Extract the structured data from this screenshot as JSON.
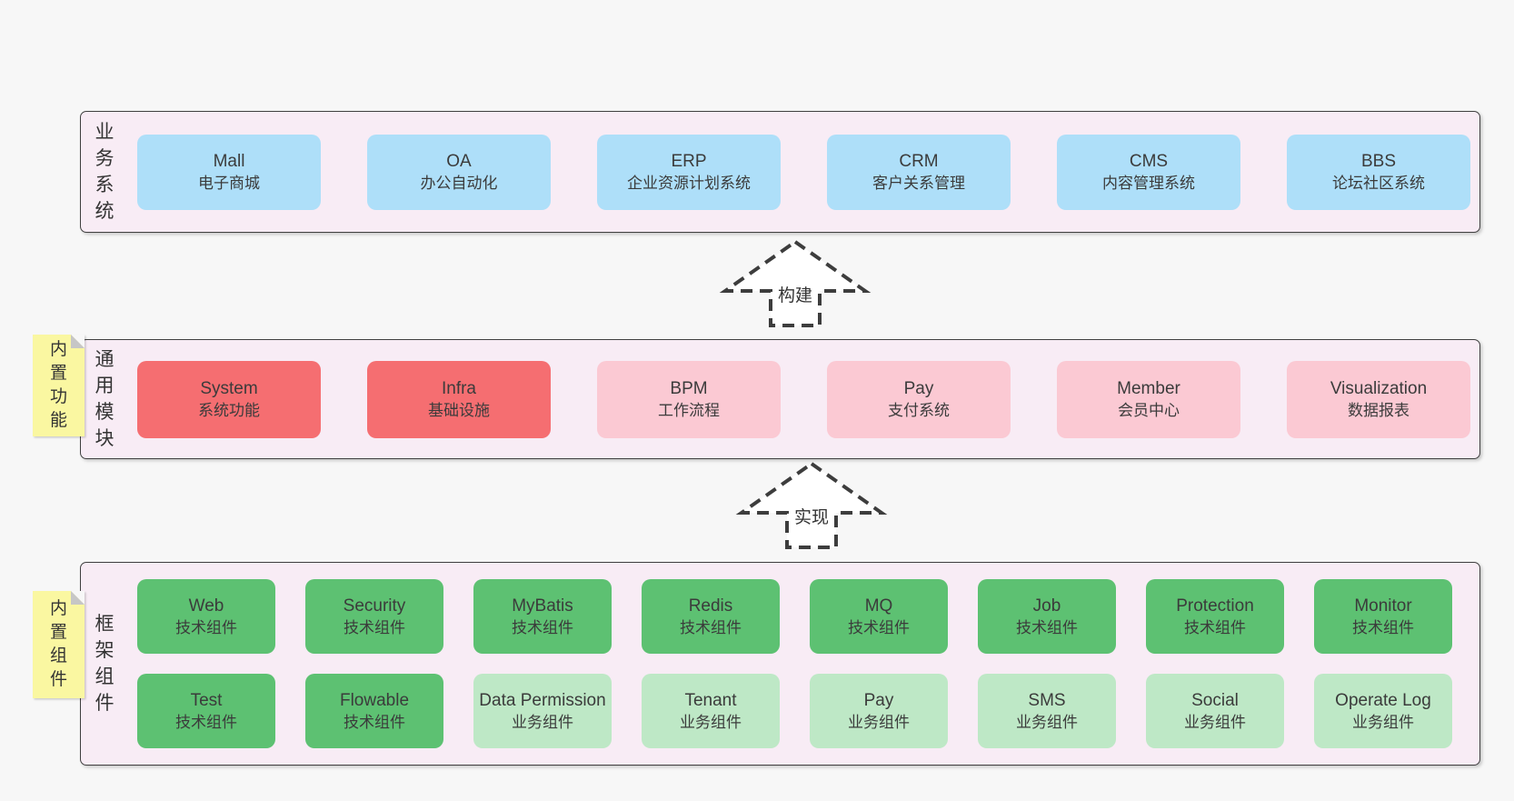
{
  "diagram": {
    "colors": {
      "blue": "#aedff9",
      "red": "#f56e71",
      "pink": "#fbc9d3",
      "green": "#5dc172",
      "lightgreen": "#bee8c6",
      "panel_bg": "#f8ecf5",
      "panel_border": "#404040",
      "note_bg": "#faf7a1",
      "note_fold": "#c6c6c6",
      "page_bg": "#f7f7f7",
      "arrow_stroke": "#3d3d3d",
      "text": "#3b3b3b"
    },
    "arrows": [
      {
        "label": "构建"
      },
      {
        "label": "实现"
      }
    ],
    "sections": [
      {
        "id": "business-systems",
        "side_label": "业务系统",
        "note": "",
        "rows": [
          [
            {
              "name": "Mall",
              "subtitle": "电子商城",
              "variant": "blue"
            },
            {
              "name": "OA",
              "subtitle": "办公自动化",
              "variant": "blue"
            },
            {
              "name": "ERP",
              "subtitle": "企业资源计划系统",
              "variant": "blue"
            },
            {
              "name": "CRM",
              "subtitle": "客户关系管理",
              "variant": "blue"
            },
            {
              "name": "CMS",
              "subtitle": "内容管理系统",
              "variant": "blue"
            },
            {
              "name": "BBS",
              "subtitle": "论坛社区系统",
              "variant": "blue"
            }
          ]
        ]
      },
      {
        "id": "common-modules",
        "side_label": "通用模块",
        "note": "内置功能",
        "rows": [
          [
            {
              "name": "System",
              "subtitle": "系统功能",
              "variant": "red"
            },
            {
              "name": "Infra",
              "subtitle": "基础设施",
              "variant": "red"
            },
            {
              "name": "BPM",
              "subtitle": "工作流程",
              "variant": "pink"
            },
            {
              "name": "Pay",
              "subtitle": "支付系统",
              "variant": "pink"
            },
            {
              "name": "Member",
              "subtitle": "会员中心",
              "variant": "pink"
            },
            {
              "name": "Visualization",
              "subtitle": "数据报表",
              "variant": "pink"
            }
          ]
        ]
      },
      {
        "id": "framework-components",
        "side_label": "框架组件",
        "note": "内置组件",
        "rows": [
          [
            {
              "name": "Web",
              "subtitle": "技术组件",
              "variant": "green"
            },
            {
              "name": "Security",
              "subtitle": "技术组件",
              "variant": "green"
            },
            {
              "name": "MyBatis",
              "subtitle": "技术组件",
              "variant": "green"
            },
            {
              "name": "Redis",
              "subtitle": "技术组件",
              "variant": "green"
            },
            {
              "name": "MQ",
              "subtitle": "技术组件",
              "variant": "green"
            },
            {
              "name": "Job",
              "subtitle": "技术组件",
              "variant": "green"
            },
            {
              "name": "Protection",
              "subtitle": "技术组件",
              "variant": "green"
            },
            {
              "name": "Monitor",
              "subtitle": "技术组件",
              "variant": "green"
            }
          ],
          [
            {
              "name": "Test",
              "subtitle": "技术组件",
              "variant": "green"
            },
            {
              "name": "Flowable",
              "subtitle": "技术组件",
              "variant": "green"
            },
            {
              "name": "Data Permission",
              "subtitle": "业务组件",
              "variant": "lightgreen"
            },
            {
              "name": "Tenant",
              "subtitle": "业务组件",
              "variant": "lightgreen"
            },
            {
              "name": "Pay",
              "subtitle": "业务组件",
              "variant": "lightgreen"
            },
            {
              "name": "SMS",
              "subtitle": "业务组件",
              "variant": "lightgreen"
            },
            {
              "name": "Social",
              "subtitle": "业务组件",
              "variant": "lightgreen"
            },
            {
              "name": "Operate Log",
              "subtitle": "业务组件",
              "variant": "lightgreen"
            }
          ]
        ]
      }
    ]
  }
}
